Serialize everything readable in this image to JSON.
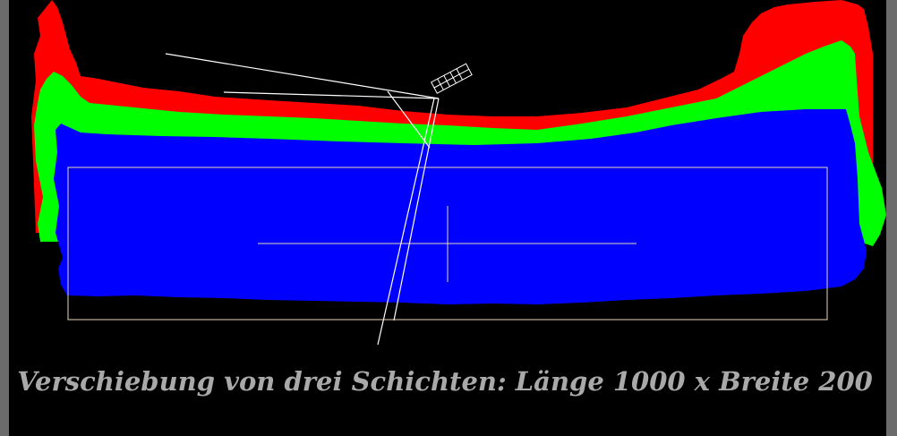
{
  "caption": "Verschiebung von drei Schichten: Länge 1000 x Breite 200"
}
